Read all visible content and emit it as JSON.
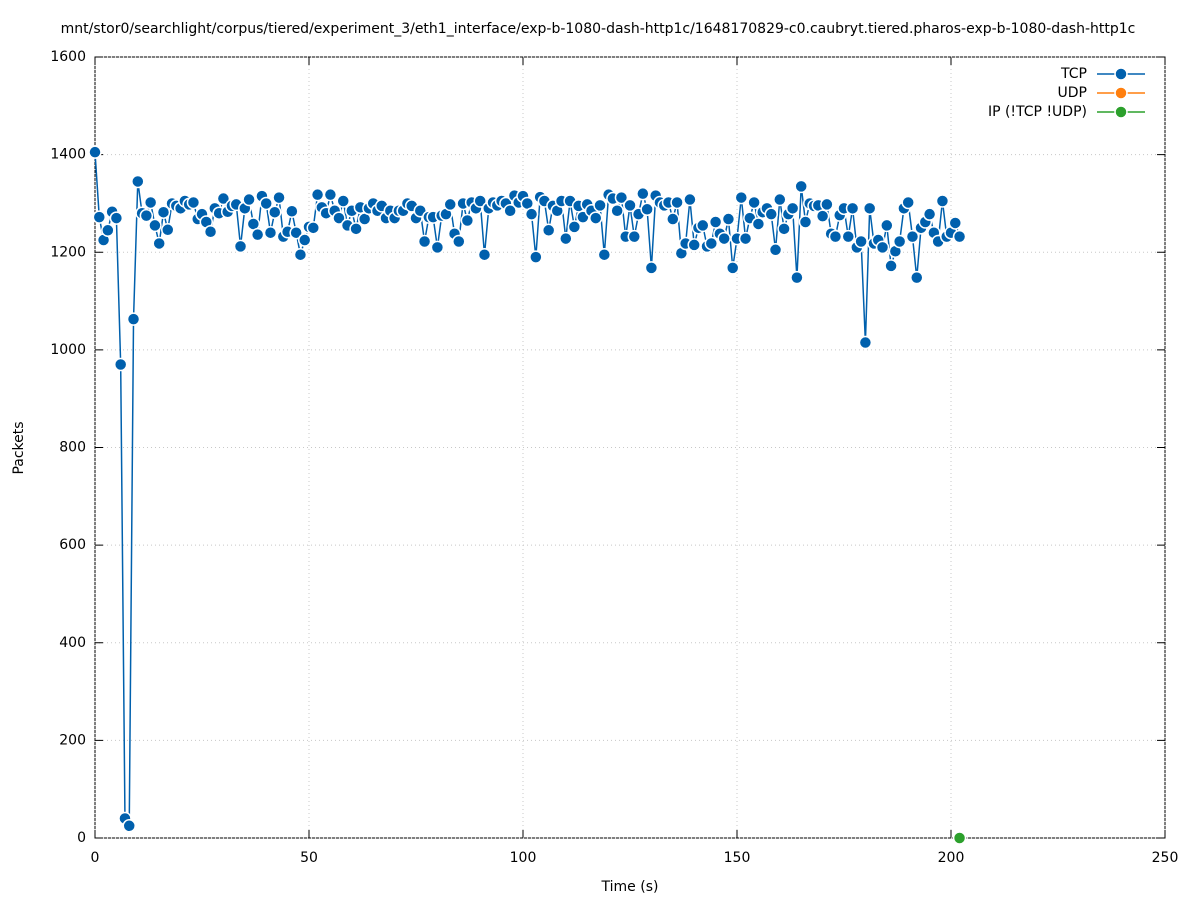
{
  "chart_data": {
    "type": "line",
    "title": "mnt/stor0/searchlight/corpus/tiered/experiment_3/eth1_interface/exp-b-1080-dash-http1c/1648170829-c0.caubryt.tiered.pharos-exp-b-1080-dash-http1c",
    "xlabel": "Time (s)",
    "ylabel": "Packets",
    "xlim": [
      0,
      250
    ],
    "xticks": [
      0,
      50,
      100,
      150,
      200,
      250
    ],
    "ylim": [
      0,
      1600
    ],
    "yticks": [
      0,
      200,
      400,
      600,
      800,
      1000,
      1200,
      1400,
      1600
    ],
    "grid": true,
    "legend": "upper right",
    "series": [
      {
        "name": "TCP",
        "color": "#0060ad",
        "x": [
          0,
          1,
          2,
          3,
          4,
          5,
          6,
          7,
          8,
          9,
          10,
          11,
          12,
          13,
          14,
          15,
          16,
          17,
          18,
          19,
          20,
          21,
          22,
          23,
          24,
          25,
          26,
          27,
          28,
          29,
          30,
          31,
          32,
          33,
          34,
          35,
          36,
          37,
          38,
          39,
          40,
          41,
          42,
          43,
          44,
          45,
          46,
          47,
          48,
          49,
          50,
          51,
          52,
          53,
          54,
          55,
          56,
          57,
          58,
          59,
          60,
          61,
          62,
          63,
          64,
          65,
          66,
          67,
          68,
          69,
          70,
          71,
          72,
          73,
          74,
          75,
          76,
          77,
          78,
          79,
          80,
          81,
          82,
          83,
          84,
          85,
          86,
          87,
          88,
          89,
          90,
          91,
          92,
          93,
          94,
          95,
          96,
          97,
          98,
          99,
          100,
          101,
          102,
          103,
          104,
          105,
          106,
          107,
          108,
          109,
          110,
          111,
          112,
          113,
          114,
          115,
          116,
          117,
          118,
          119,
          120,
          121,
          122,
          123,
          124,
          125,
          126,
          127,
          128,
          129,
          130,
          131,
          132,
          133,
          134,
          135,
          136,
          137,
          138,
          139,
          140,
          141,
          142,
          143,
          144,
          145,
          146,
          147,
          148,
          149,
          150,
          151,
          152,
          153,
          154,
          155,
          156,
          157,
          158,
          159,
          160,
          161,
          162,
          163,
          164,
          165,
          166,
          167,
          168,
          169,
          170,
          171,
          172,
          173,
          174,
          175,
          176,
          177,
          178,
          179,
          180,
          181,
          182,
          183,
          184,
          185,
          186,
          187,
          188,
          189,
          190,
          191,
          192,
          193,
          194,
          195,
          196,
          197,
          198,
          199,
          200,
          201,
          202
        ],
        "values": [
          1405,
          1272,
          1225,
          1245,
          1283,
          1270,
          970,
          40,
          25,
          1063,
          1345,
          1280,
          1275,
          1302,
          1255,
          1218,
          1282,
          1246,
          1300,
          1295,
          1290,
          1305,
          1298,
          1302,
          1268,
          1278,
          1262,
          1242,
          1290,
          1280,
          1310,
          1283,
          1295,
          1298,
          1212,
          1290,
          1308,
          1258,
          1236,
          1315,
          1300,
          1240,
          1282,
          1312,
          1232,
          1242,
          1284,
          1240,
          1195,
          1225,
          1252,
          1250,
          1318,
          1292,
          1280,
          1318,
          1285,
          1270,
          1305,
          1255,
          1285,
          1248,
          1292,
          1268,
          1290,
          1300,
          1285,
          1295,
          1270,
          1285,
          1270,
          1285,
          1285,
          1300,
          1295,
          1270,
          1285,
          1222,
          1272,
          1272,
          1210,
          1275,
          1278,
          1298,
          1238,
          1222,
          1300,
          1265,
          1302,
          1290,
          1305,
          1195,
          1290,
          1302,
          1296,
          1305,
          1300,
          1285,
          1316,
          1302,
          1315,
          1300,
          1278,
          1190,
          1313,
          1305,
          1245,
          1295,
          1285,
          1305,
          1228,
          1305,
          1252,
          1295,
          1272,
          1298,
          1285,
          1270,
          1296,
          1195,
          1318,
          1310,
          1285,
          1312,
          1232,
          1296,
          1232,
          1278,
          1320,
          1288,
          1168,
          1316,
          1302,
          1296,
          1302,
          1268,
          1302,
          1198,
          1218,
          1308,
          1215,
          1250,
          1255,
          1212,
          1218,
          1262,
          1238,
          1228,
          1268,
          1168,
          1228,
          1312,
          1228,
          1270,
          1302,
          1258,
          1282,
          1290,
          1278,
          1205,
          1308,
          1248,
          1278,
          1290,
          1148,
          1335,
          1262,
          1300,
          1295,
          1296,
          1274,
          1298,
          1238,
          1232,
          1276,
          1290,
          1232,
          1290,
          1210,
          1222,
          1015,
          1290,
          1218,
          1225,
          1210,
          1255,
          1172,
          1202,
          1222,
          1290,
          1302,
          1232,
          1148,
          1250,
          1262,
          1278,
          1240,
          1222,
          1305,
          1232,
          1240,
          1260,
          1232
        ]
      },
      {
        "name": "UDP",
        "color": "#ff7f0e",
        "x": [
          202
        ],
        "values": [
          0
        ]
      },
      {
        "name": "IP (!TCP  !UDP)",
        "color": "#2ca02c",
        "x": [
          202
        ],
        "values": [
          0
        ]
      }
    ]
  }
}
